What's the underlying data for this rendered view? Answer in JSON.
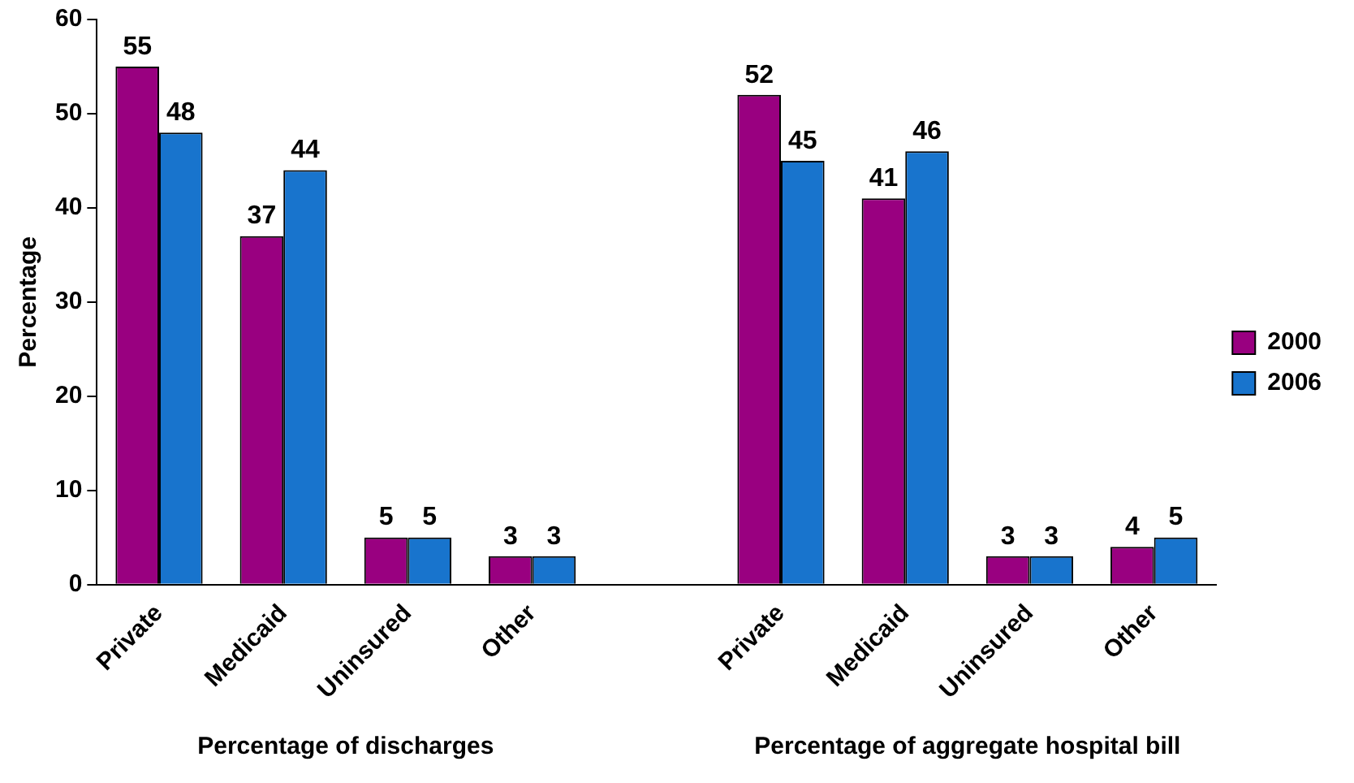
{
  "chart_data": {
    "type": "bar",
    "ylabel": "Percentage",
    "categories": [
      "Private",
      "Medicaid",
      "Uninsured",
      "Other",
      null,
      "Private",
      "Medicaid",
      "Uninsured",
      "Other"
    ],
    "series": [
      {
        "name": "2000",
        "color": "#990080",
        "values": [
          55,
          37,
          5,
          3,
          null,
          52,
          41,
          3,
          4
        ]
      },
      {
        "name": "2006",
        "color": "#1874cd",
        "values": [
          48,
          44,
          5,
          3,
          null,
          45,
          46,
          3,
          5
        ]
      }
    ],
    "ylim": [
      0,
      60
    ],
    "yticks": [
      0,
      10,
      20,
      30,
      40,
      50,
      60
    ],
    "grid": false,
    "legend": "right",
    "data_labels": true,
    "annotations": [
      "Percentage of discharges",
      "Percentage of aggregate hospital bill"
    ]
  }
}
